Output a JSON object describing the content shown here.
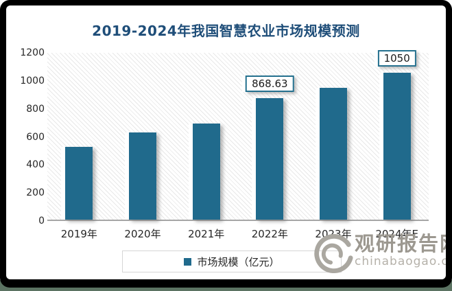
{
  "title": "2019-2024年我国智慧农业市场规模预测",
  "chart_data": {
    "type": "bar",
    "title": "2019-2024年我国智慧农业市场规模预测",
    "categories": [
      "2019年",
      "2020年",
      "2021年",
      "2022年",
      "2023年",
      "2024年E"
    ],
    "series": [
      {
        "name": "市场规模（亿元）",
        "values": [
          520,
          620,
          685,
          868.63,
          940,
          1050
        ]
      }
    ],
    "data_labels": [
      {
        "category_index": 3,
        "text": "868.63"
      },
      {
        "category_index": 5,
        "text": "1050"
      }
    ],
    "xlabel": "",
    "ylabel": "",
    "ylim": [
      0,
      1200
    ],
    "yticks": [
      0,
      200,
      400,
      600,
      800,
      1000,
      1200
    ],
    "grid": false,
    "legend_position": "bottom",
    "plot_background": "diagonal-hatch"
  },
  "legend": {
    "label": "市场规模（亿元）",
    "swatch_color": "#206A8C"
  },
  "watermark": {
    "brand": "观研报告网",
    "domain": "chinabaogao.com",
    "logo": "swirl-logo-icon"
  },
  "colors": {
    "title": "#1F4E79",
    "bar": "#206A8C",
    "label_box_border": "#24708E",
    "axis_line": "#A6A6A6",
    "frame": "#000000",
    "bottom_strip": "#5B7362",
    "watermark_brand": "#9C9890",
    "watermark_domain": "#B5B1A9"
  }
}
